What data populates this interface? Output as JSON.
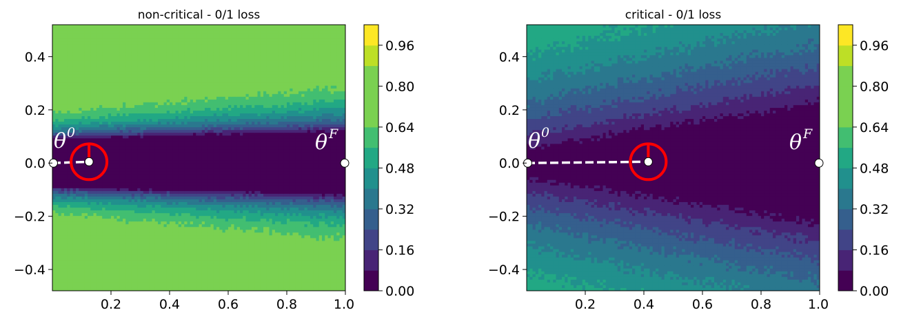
{
  "chart_data": [
    {
      "type": "heatmap",
      "title": "non-critical - 0/1 loss",
      "xlim": [
        0.0,
        1.0
      ],
      "ylim": [
        -0.48,
        0.52
      ],
      "xticks": [
        "0.2",
        "0.4",
        "0.6",
        "0.8",
        "1.0"
      ],
      "xtick_values": [
        0.2,
        0.4,
        0.6,
        0.8,
        1.0
      ],
      "yticks": [
        "0.4",
        "0.2",
        "0.0",
        "−0.2",
        "−0.4"
      ],
      "ytick_values": [
        0.4,
        0.2,
        0.0,
        -0.2,
        -0.4
      ],
      "colorbar": {
        "ticks": [
          "0.96",
          "0.80",
          "0.64",
          "0.48",
          "0.32",
          "0.16",
          "0.00"
        ],
        "tick_values": [
          0.96,
          0.8,
          0.64,
          0.48,
          0.32,
          0.16,
          0.0
        ],
        "range": [
          0.0,
          1.04
        ],
        "levels": 13,
        "colormap": "viridis"
      },
      "valley": {
        "half_width_start": 0.085,
        "half_width_end": 0.11,
        "transition_width": 0.1,
        "plateau_value": 0.78
      },
      "points": {
        "theta0": {
          "label": "θ",
          "sup": "0",
          "x": 0.0,
          "y": 0.0
        },
        "thetaF": {
          "label": "θ",
          "sup": "F",
          "x": 1.0,
          "y": 0.0
        },
        "current": {
          "x": 0.125,
          "y": 0.005
        }
      },
      "marker_color": "#ff0000",
      "path_color": "#ffffff"
    },
    {
      "type": "heatmap",
      "title": "critical - 0/1 loss",
      "xlim": [
        0.0,
        1.0
      ],
      "ylim": [
        -0.48,
        0.52
      ],
      "xticks": [
        "0.2",
        "0.4",
        "0.6",
        "0.8",
        "1.0"
      ],
      "xtick_values": [
        0.2,
        0.4,
        0.6,
        0.8,
        1.0
      ],
      "yticks": [
        "0.4",
        "0.2",
        "0.0",
        "−0.2",
        "−0.4"
      ],
      "ytick_values": [
        0.4,
        0.2,
        0.0,
        -0.2,
        -0.4
      ],
      "colorbar": {
        "ticks": [
          "0.96",
          "0.80",
          "0.64",
          "0.48",
          "0.32",
          "0.16",
          "0.00"
        ],
        "tick_values": [
          0.96,
          0.8,
          0.64,
          0.48,
          0.32,
          0.16,
          0.0
        ],
        "range": [
          0.0,
          1.04
        ],
        "levels": 13,
        "colormap": "viridis"
      },
      "valley": {
        "half_width_start": 0.01,
        "half_width_end": 0.17,
        "transition_width": 0.3,
        "plateau_value": 0.62
      },
      "points": {
        "theta0": {
          "label": "θ",
          "sup": "0",
          "x": 0.0,
          "y": 0.0
        },
        "thetaF": {
          "label": "θ",
          "sup": "F",
          "x": 1.0,
          "y": 0.0
        },
        "current": {
          "x": 0.415,
          "y": 0.005
        }
      },
      "marker_color": "#ff0000",
      "path_color": "#ffffff"
    }
  ]
}
